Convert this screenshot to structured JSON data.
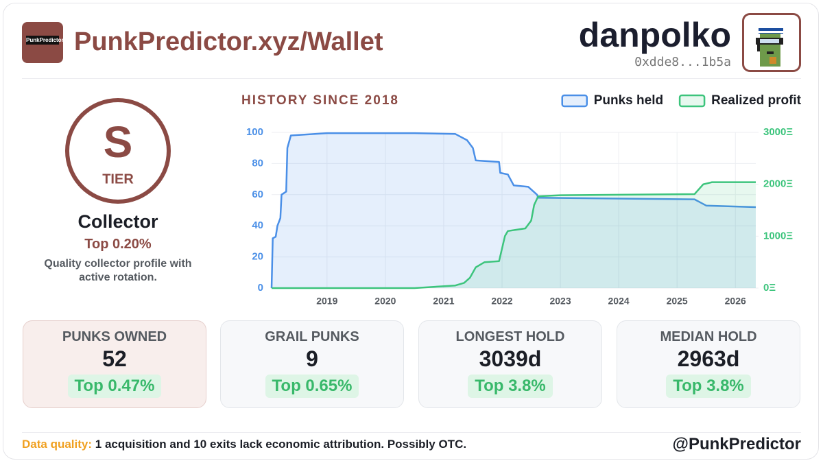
{
  "header": {
    "logo_text": "PunkPredictor",
    "title": "PunkPredictor.xyz/Wallet",
    "user": "danpolko",
    "address": "0xdde8...1b5a"
  },
  "tier": {
    "letter": "S",
    "word": "TIER",
    "name": "Collector",
    "rank": "Top 0.20%",
    "description": "Quality collector profile with active rotation."
  },
  "chart_data": {
    "type": "line",
    "title": "HISTORY SINCE 2018",
    "legend": "top-right",
    "grid": true,
    "xlim": [
      2018.05,
      2026.35
    ],
    "xticks": [
      2019,
      2020,
      2021,
      2022,
      2023,
      2024,
      2025,
      2026
    ],
    "ylim": [
      0,
      100
    ],
    "yticks": [
      0,
      20,
      40,
      60,
      80,
      100
    ],
    "y2lim": [
      0,
      3000
    ],
    "y2ticks": [
      {
        "value": 0,
        "label": "0Ξ"
      },
      {
        "value": 1000,
        "label": "1000Ξ"
      },
      {
        "value": 2000,
        "label": "2000Ξ"
      },
      {
        "value": 3000,
        "label": "3000Ξ"
      }
    ],
    "series": [
      {
        "name": "Punks held",
        "color": "#4a8fe7",
        "fill": "rgba(74,143,231,0.14)",
        "x": [
          2018.05,
          2018.07,
          2018.12,
          2018.15,
          2018.2,
          2018.22,
          2018.3,
          2018.32,
          2018.38,
          2019,
          2020.5,
          2021.2,
          2021.4,
          2021.5,
          2021.55,
          2021.95,
          2021.97,
          2022.1,
          2022.2,
          2022.45,
          2022.6,
          2022.62,
          2025.3,
          2025.5,
          2026.35
        ],
        "values": [
          0,
          32,
          33,
          40,
          45,
          60,
          62,
          90,
          98,
          99.5,
          99.5,
          99,
          95,
          90,
          82,
          81,
          74,
          73,
          66,
          65,
          60,
          58,
          57,
          53,
          52
        ]
      },
      {
        "name": "Realized profit",
        "color": "#3cc47c",
        "fill": "rgba(60,196,124,0.12)",
        "axis": "y2",
        "x": [
          2018.05,
          2020.5,
          2021.2,
          2021.35,
          2021.45,
          2021.55,
          2021.7,
          2021.95,
          2022.05,
          2022.1,
          2022.4,
          2022.5,
          2022.55,
          2022.62,
          2023,
          2025.3,
          2025.45,
          2025.6,
          2026.35
        ],
        "values": [
          0,
          0,
          50,
          100,
          200,
          400,
          500,
          520,
          1000,
          1100,
          1150,
          1300,
          1600,
          1770,
          1790,
          1810,
          2000,
          2040,
          2040
        ]
      }
    ]
  },
  "cards": [
    {
      "label": "PUNKS OWNED",
      "value": "52",
      "rank": "Top 0.47%"
    },
    {
      "label": "GRAIL PUNKS",
      "value": "9",
      "rank": "Top 0.65%"
    },
    {
      "label": "LONGEST HOLD",
      "value": "3039d",
      "rank": "Top 3.8%"
    },
    {
      "label": "MEDIAN HOLD",
      "value": "2963d",
      "rank": "Top 3.8%"
    }
  ],
  "footer": {
    "quality_label": "Data quality:",
    "quality_text": "1 acquisition and 10 exits lack economic attribution. Possibly OTC.",
    "handle": "@PunkPredictor"
  }
}
